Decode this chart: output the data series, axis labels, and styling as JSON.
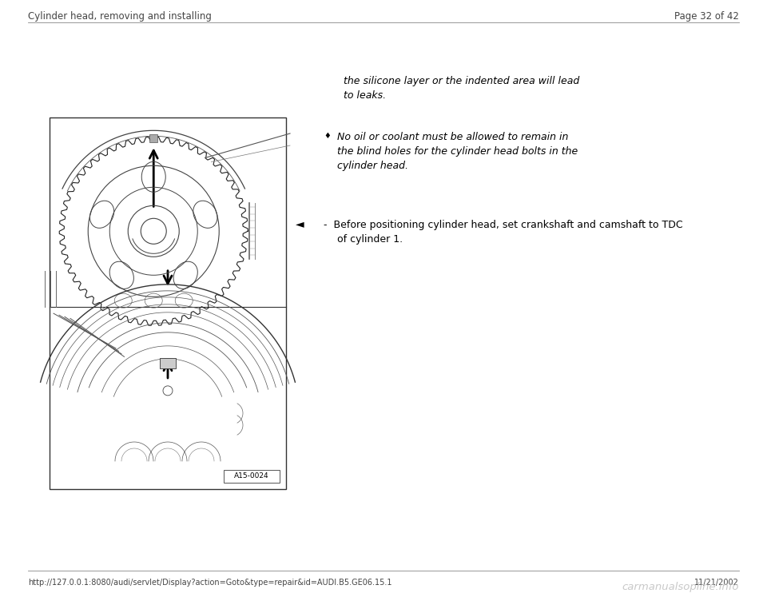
{
  "background_color": "#ffffff",
  "header_left": "Cylinder head, removing and installing",
  "header_right": "Page 32 of 42",
  "footer_url": "http://127.0.0.1:8080/audi/servlet/Display?action=Goto&type=repair&id=AUDI.B5.GE06.15.1",
  "footer_date": "11/21/2002",
  "footer_watermark": "carmanualsopline.info",
  "text_italic_1": "the silicone layer or the indented area will lead",
  "text_italic_2": "to leaks.",
  "bullet_symbol": "♦",
  "bullet_text_1": "No oil or coolant must be allowed to remain in",
  "bullet_text_2": "the blind holes for the cylinder head bolts in the",
  "bullet_text_3": "cylinder head.",
  "step_dash": "-",
  "step_text_1": "Before positioning cylinder head, set crankshaft and camshaft to TDC",
  "step_text_2": "of cylinder 1.",
  "image_label": "A15-0024",
  "text_color": "#000000",
  "header_color": "#444444",
  "line_color": "#888888",
  "font_size_header": 8.5,
  "font_size_body": 9,
  "font_size_footer": 7
}
